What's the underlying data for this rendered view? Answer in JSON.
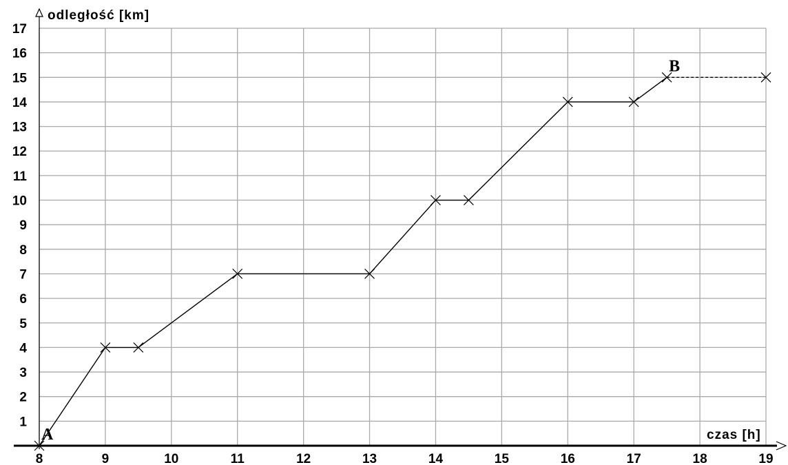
{
  "chart_data": {
    "type": "line",
    "xlabel": "czas [h]",
    "ylabel": "odległość [km]",
    "xlim": [
      8,
      19
    ],
    "ylim": [
      0,
      17
    ],
    "x_ticks": [
      "8",
      "9",
      "10",
      "11",
      "12",
      "13",
      "14",
      "15",
      "16",
      "17",
      "18",
      "19"
    ],
    "y_ticks": [
      "1",
      "2",
      "3",
      "4",
      "5",
      "6",
      "7",
      "8",
      "9",
      "10",
      "11",
      "12",
      "13",
      "14",
      "15",
      "16",
      "17"
    ],
    "grid": true,
    "series": [
      {
        "x": [
          8,
          9,
          9.5,
          11,
          13,
          14,
          14.5,
          16,
          17,
          17.5
        ],
        "y": [
          0,
          4,
          4,
          7,
          7,
          10,
          10,
          14,
          14,
          15
        ],
        "line_style": "solid",
        "marker": "x"
      },
      {
        "x": [
          17.5,
          19
        ],
        "y": [
          15,
          15
        ],
        "line_style": "dashed",
        "marker": "x"
      }
    ],
    "annotations": [
      {
        "text": "A",
        "x": 8,
        "y": 0
      },
      {
        "text": "B",
        "x": 17.5,
        "y": 15
      }
    ]
  }
}
